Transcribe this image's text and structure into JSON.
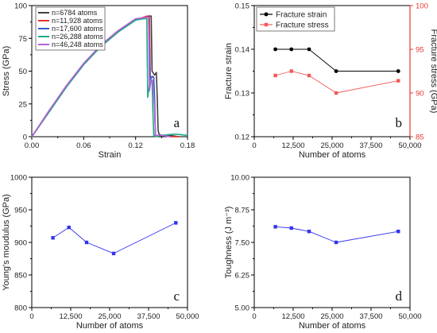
{
  "chart_data": [
    {
      "panel": "a",
      "type": "line",
      "xlabel": "Strain",
      "ylabel": "Stress (GPa)",
      "xlim": [
        0,
        0.18
      ],
      "ylim": [
        0,
        100
      ],
      "xticks": [
        "0.00",
        "0.06",
        "0.12",
        "0.18"
      ],
      "yticks": [
        "0",
        "25",
        "50",
        "75",
        "100"
      ],
      "legend_position": "top-left",
      "series": [
        {
          "name": "n=6784 atoms",
          "color": "#404040",
          "x": [
            0,
            0.02,
            0.04,
            0.06,
            0.08,
            0.1,
            0.12,
            0.135,
            0.138,
            0.139,
            0.141,
            0.142,
            0.143,
            0.144,
            0.145,
            0.146,
            0.147,
            0.15,
            0.16,
            0.17
          ],
          "y": [
            0,
            19,
            38,
            55,
            69,
            80,
            89,
            92,
            92,
            50,
            48,
            47,
            48,
            49,
            30,
            5,
            2,
            1,
            1,
            0
          ]
        },
        {
          "name": "n=11,928 atoms",
          "color": "#e8312e",
          "x": [
            0,
            0.02,
            0.04,
            0.06,
            0.08,
            0.1,
            0.12,
            0.133,
            0.136,
            0.137,
            0.139,
            0.141,
            0.142,
            0.143,
            0.15,
            0.16,
            0.17
          ],
          "y": [
            0,
            19,
            38,
            55,
            69,
            80,
            89,
            92,
            91,
            45,
            46,
            45,
            20,
            1,
            1,
            0,
            0
          ]
        },
        {
          "name": "n=17,600 atoms",
          "color": "#2f5fd0",
          "x": [
            0,
            0.02,
            0.04,
            0.06,
            0.08,
            0.1,
            0.12,
            0.132,
            0.135,
            0.137,
            0.138,
            0.14,
            0.141,
            0.142,
            0.143,
            0.15,
            0.16
          ],
          "y": [
            0,
            19,
            38,
            55,
            69,
            80,
            89,
            91,
            91,
            40,
            45,
            46,
            45,
            30,
            1,
            1,
            0
          ]
        },
        {
          "name": "n=26,288 atoms",
          "color": "#1fa886",
          "x": [
            0,
            0.02,
            0.04,
            0.06,
            0.08,
            0.1,
            0.12,
            0.13,
            0.133,
            0.134,
            0.136,
            0.138,
            0.139,
            0.14,
            0.141,
            0.143,
            0.15,
            0.165,
            0.18
          ],
          "y": [
            0,
            19,
            38,
            55,
            69,
            80,
            89,
            90,
            90,
            30,
            40,
            44,
            42,
            20,
            1,
            0,
            1,
            2,
            1
          ]
        },
        {
          "name": "n=46,248 atoms",
          "color": "#b664d8",
          "x": [
            0,
            0.02,
            0.04,
            0.06,
            0.08,
            0.1,
            0.12,
            0.133,
            0.135,
            0.136,
            0.138,
            0.14,
            0.142,
            0.143,
            0.15,
            0.16
          ],
          "y": [
            0,
            20,
            39,
            56,
            70,
            81,
            90,
            91,
            91,
            35,
            44,
            42,
            20,
            1,
            1,
            0
          ]
        }
      ]
    },
    {
      "panel": "b",
      "type": "line",
      "xlabel": "Number of atoms",
      "ylabel": "Fracture strain",
      "ylabel_right": "Fracture stress (GPa)",
      "xlim": [
        0,
        50000
      ],
      "ylim": [
        0.12,
        0.15
      ],
      "ylim_right": [
        85,
        100
      ],
      "xticks": [
        "0",
        "12,500",
        "25,000",
        "37,500",
        "50,000"
      ],
      "yticks": [
        "0.12",
        "0.13",
        "0.14",
        "0.15"
      ],
      "yticks_right": [
        "85",
        "90",
        "95",
        "100"
      ],
      "legend_position": "top-left",
      "series": [
        {
          "name": "Fracture strain",
          "axis": "left",
          "color": "#000000",
          "marker": "circle",
          "x": [
            6784,
            11928,
            17600,
            26288,
            46248
          ],
          "y": [
            0.14,
            0.14,
            0.14,
            0.135,
            0.135
          ]
        },
        {
          "name": "Fracture stress",
          "axis": "right",
          "color": "#f05a5a",
          "marker": "square",
          "x": [
            6784,
            11928,
            17600,
            26288,
            46248
          ],
          "y": [
            92.0,
            92.5,
            92.0,
            90.0,
            91.4
          ]
        }
      ]
    },
    {
      "panel": "c",
      "type": "line",
      "xlabel": "Number of atoms",
      "ylabel": "Young's moudulus (GPa)",
      "xlim": [
        0,
        50000
      ],
      "ylim": [
        800,
        1000
      ],
      "xticks": [
        "0",
        "12,500",
        "25,000",
        "37,500",
        "50,000"
      ],
      "yticks": [
        "800",
        "850",
        "900",
        "950",
        "1000"
      ],
      "series": [
        {
          "color": "#3333ee",
          "marker": "square",
          "x": [
            6784,
            11928,
            17600,
            26288,
            46248
          ],
          "y": [
            907,
            923,
            900,
            883,
            930
          ]
        }
      ]
    },
    {
      "panel": "d",
      "type": "line",
      "xlabel": "Number of atoms",
      "ylabel": "Toughness (J m⁻³)",
      "xlim": [
        0,
        50000
      ],
      "ylim": [
        5.0,
        10.0
      ],
      "xticks": [
        "0",
        "12,500",
        "25,000",
        "37,500",
        "50,000"
      ],
      "yticks": [
        "5.00",
        "6.25",
        "7.50",
        "8.75",
        "10.00"
      ],
      "series": [
        {
          "color": "#3333ee",
          "marker": "square",
          "x": [
            6784,
            11928,
            17600,
            26288,
            46248
          ],
          "y": [
            8.1,
            8.05,
            7.92,
            7.5,
            7.92
          ]
        }
      ]
    }
  ]
}
